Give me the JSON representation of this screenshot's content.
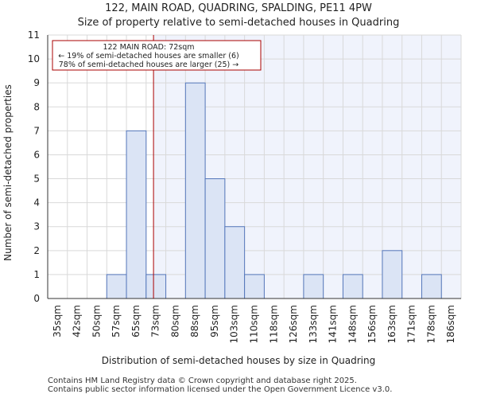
{
  "title_line1": "122, MAIN ROAD, QUADRING, SPALDING, PE11 4PW",
  "title_line2": "Size of property relative to semi-detached houses in Quadring",
  "footer_line1": "Contains HM Land Registry data © Crown copyright and database right 2025.",
  "footer_line2": "Contains public sector information licensed under the Open Government Licence v3.0.",
  "chart_data": {
    "type": "bar",
    "categories": [
      "35sqm",
      "42sqm",
      "50sqm",
      "57sqm",
      "65sqm",
      "73sqm",
      "80sqm",
      "88sqm",
      "95sqm",
      "103sqm",
      "110sqm",
      "118sqm",
      "126sqm",
      "133sqm",
      "141sqm",
      "148sqm",
      "156sqm",
      "163sqm",
      "171sqm",
      "178sqm",
      "186sqm"
    ],
    "values": [
      0,
      0,
      0,
      1,
      7,
      1,
      0,
      9,
      5,
      3,
      1,
      0,
      0,
      1,
      0,
      1,
      0,
      2,
      0,
      1,
      0
    ],
    "xlabel": "Distribution of semi-detached houses by size in Quadring",
    "ylabel": "Number of semi-detached properties",
    "ylim": [
      0,
      11
    ],
    "yticks": [
      0,
      1,
      2,
      3,
      4,
      5,
      6,
      7,
      8,
      9,
      10,
      11
    ],
    "grid": true,
    "bar_color": "#dbe4f5",
    "bar_edge_color": "#5577bb",
    "highlight_color": "#f0f3fc",
    "marker": {
      "value_sqm": 72,
      "line_color": "#aa0000",
      "annotation": [
        "122 MAIN ROAD: 72sqm",
        "← 19% of semi-detached houses are smaller (6)",
        "78% of semi-detached houses are larger (25) →"
      ]
    }
  }
}
